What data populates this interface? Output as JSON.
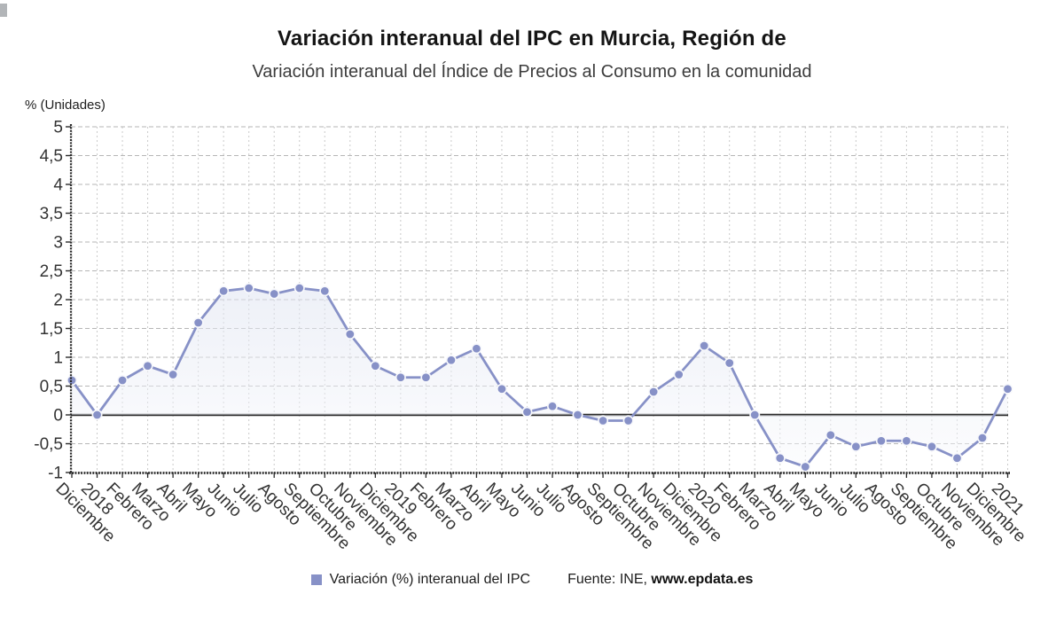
{
  "chart_data": {
    "type": "line",
    "title": "Variación interanual del IPC en Murcia, Región de",
    "subtitle": "Variación interanual del Índice de Precios al Consumo en la comunidad",
    "unit_label": "% (Unidades)",
    "categories": [
      "Diciembre",
      "2018",
      "Febrero",
      "Marzo",
      "Abril",
      "Mayo",
      "Junio",
      "Julio",
      "Agosto",
      "Septiembre",
      "Octubre",
      "Noviembre",
      "Diciembre",
      "2019",
      "Febrero",
      "Marzo",
      "Abril",
      "Mayo",
      "Junio",
      "Julio",
      "Agosto",
      "Septiembre",
      "Octubre",
      "Noviembre",
      "Diciembre",
      "2020",
      "Febrero",
      "Marzo",
      "Abril",
      "Mayo",
      "Junio",
      "Julio",
      "Agosto",
      "Septiembre",
      "Octubre",
      "Noviembre",
      "Diciembre",
      "2021"
    ],
    "series": [
      {
        "name": "Variación (%) interanual del IPC",
        "values": [
          0.6,
          0,
          0.6,
          0.85,
          0.7,
          1.6,
          2.15,
          2.2,
          2.1,
          2.2,
          2.15,
          1.4,
          0.85,
          0.65,
          0.65,
          0.95,
          1.15,
          0.45,
          0.05,
          0.15,
          0,
          -0.1,
          -0.1,
          0.4,
          0.7,
          1.2,
          0.9,
          0,
          -0.75,
          -0.9,
          -0.35,
          -0.55,
          -0.45,
          -0.45,
          -0.55,
          -0.75,
          -0.4,
          0.45
        ]
      }
    ],
    "ylim": [
      -1,
      5
    ],
    "ytick_step": 0.5,
    "ytick_labels": [
      "5",
      "4,5",
      "4",
      "3,5",
      "3",
      "2,5",
      "2",
      "1,5",
      "1",
      "0,5",
      "0",
      "-0,5",
      "-1"
    ],
    "grid": true,
    "legend_position": "bottom",
    "source": {
      "prefix": "Fuente: INE, ",
      "site": "www.epdata.es"
    }
  },
  "colors": {
    "series": "#8791c7",
    "marker_stroke": "#f8f9fc",
    "area_top": "#dfe4f1",
    "area_bottom": "#f8f9fc",
    "grid_horizontal": "#b6b6b6",
    "grid_vertical": "#cacaca",
    "zero_line": "#2b2b2b",
    "axis": "#2a2a2a",
    "tick_text": "#333333",
    "title_text": "#141414",
    "subtitle_text": "#3c3c3c"
  }
}
